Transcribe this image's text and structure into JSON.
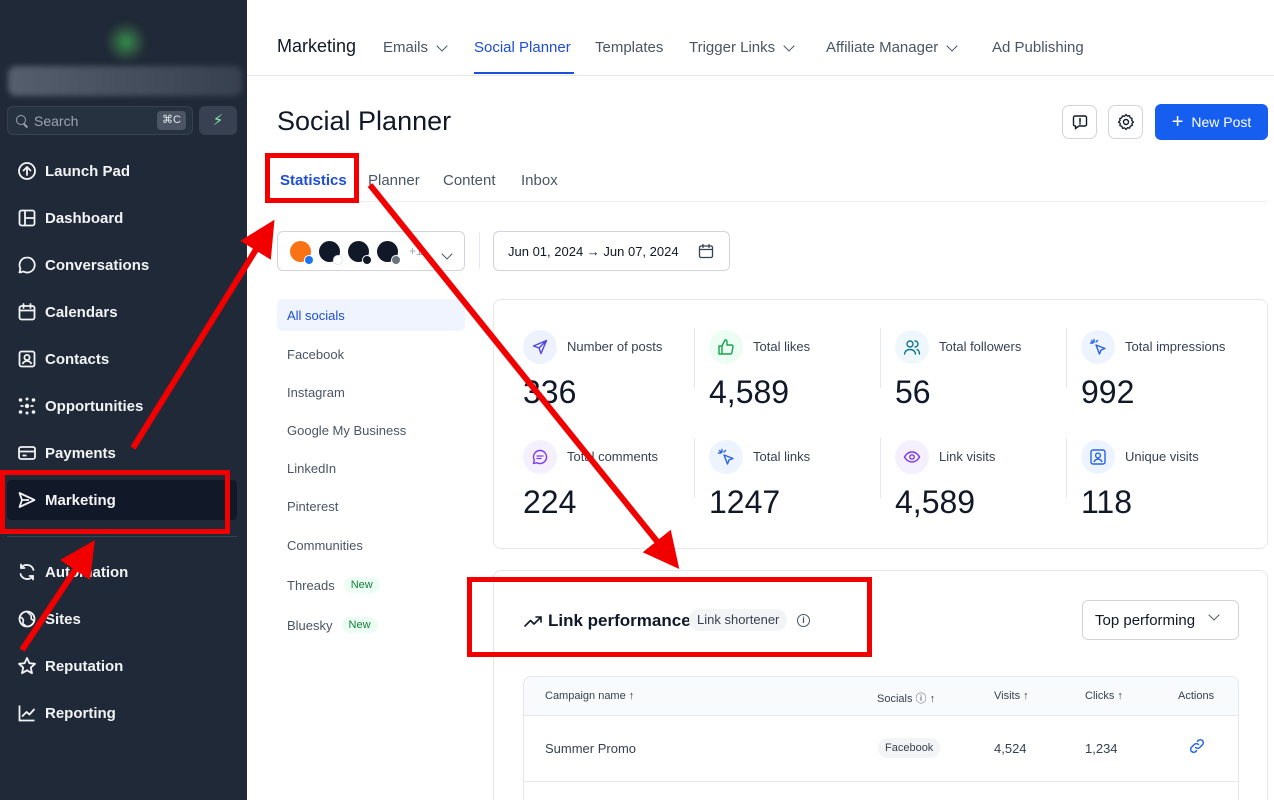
{
  "sidebar": {
    "search": {
      "placeholder": "Search",
      "shortcut": "⌘C"
    },
    "quick_action_icon": "bolt-icon",
    "items": [
      {
        "label": "Launch Pad",
        "icon": "arrow-up-circle-icon"
      },
      {
        "label": "Dashboard",
        "icon": "layout-icon"
      },
      {
        "label": "Conversations",
        "icon": "chat-bubble-icon"
      },
      {
        "label": "Calendars",
        "icon": "calendar-icon"
      },
      {
        "label": "Contacts",
        "icon": "contact-card-icon"
      },
      {
        "label": "Opportunities",
        "icon": "network-icon"
      },
      {
        "label": "Payments",
        "icon": "card-icon"
      },
      {
        "label": "Marketing",
        "icon": "send-icon",
        "active": true
      },
      {
        "label": "Automation",
        "icon": "refresh-icon"
      },
      {
        "label": "Sites",
        "icon": "globe-icon"
      },
      {
        "label": "Reputation",
        "icon": "star-icon"
      },
      {
        "label": "Reporting",
        "icon": "chart-line-icon"
      }
    ]
  },
  "topnav": {
    "title": "Marketing",
    "links": [
      {
        "label": "Emails",
        "dropdown": true
      },
      {
        "label": "Social Planner",
        "active": true
      },
      {
        "label": "Templates"
      },
      {
        "label": "Trigger Links",
        "dropdown": true
      },
      {
        "label": "Affiliate Manager",
        "dropdown": true
      },
      {
        "label": "Ad Publishing"
      }
    ]
  },
  "header": {
    "title": "Social Planner",
    "new_post_label": "New Post"
  },
  "subtabs": [
    "Statistics",
    "Planner",
    "Content",
    "Inbox"
  ],
  "filters": {
    "more_accounts": "+1",
    "date_range": "Jun 01, 2024 → Jun 07, 2024"
  },
  "social_list": [
    {
      "label": "All socials",
      "active": true
    },
    {
      "label": "Facebook"
    },
    {
      "label": "Instagram"
    },
    {
      "label": "Google My Business"
    },
    {
      "label": "LinkedIn"
    },
    {
      "label": "Pinterest"
    },
    {
      "label": "Communities"
    },
    {
      "label": "Threads",
      "badge": "New"
    },
    {
      "label": "Bluesky",
      "badge": "New"
    }
  ],
  "stats": [
    {
      "label": "Number of posts",
      "value": "336",
      "icon": "send-icon",
      "color": "#eef2ff"
    },
    {
      "label": "Total likes",
      "value": "4,589",
      "icon": "thumbs-up-icon",
      "color": "#ecfdf3"
    },
    {
      "label": "Total followers",
      "value": "56",
      "icon": "users-icon",
      "color": "#eef8fc"
    },
    {
      "label": "Total impressions",
      "value": "992",
      "icon": "sparkle-cursor-icon",
      "color": "#eef4ff"
    },
    {
      "label": "Total comments",
      "value": "224",
      "icon": "comment-icon",
      "color": "#f4f0ff"
    },
    {
      "label": "Total links",
      "value": "1247",
      "icon": "click-icon",
      "color": "#eef4ff"
    },
    {
      "label": "Link visits",
      "value": "4,589",
      "icon": "eye-icon",
      "color": "#f4f0ff"
    },
    {
      "label": "Unique visits",
      "value": "118",
      "icon": "user-square-icon",
      "color": "#eef4ff"
    }
  ],
  "link_performance": {
    "title": "Link performance",
    "badge": "Link shortener",
    "sort_value": "Top performing",
    "columns": [
      "Campaign name",
      "Socials",
      "Visits",
      "Clicks",
      "Actions"
    ],
    "rows": [
      {
        "campaign": "Summer Promo",
        "social": "Facebook",
        "visits": "4,524",
        "clicks": "1,234",
        "action_icon": "link-icon"
      }
    ]
  },
  "colors": {
    "sidebar_bg": "#1f2937",
    "accent": "#155eef",
    "annotation": "#f20000"
  }
}
